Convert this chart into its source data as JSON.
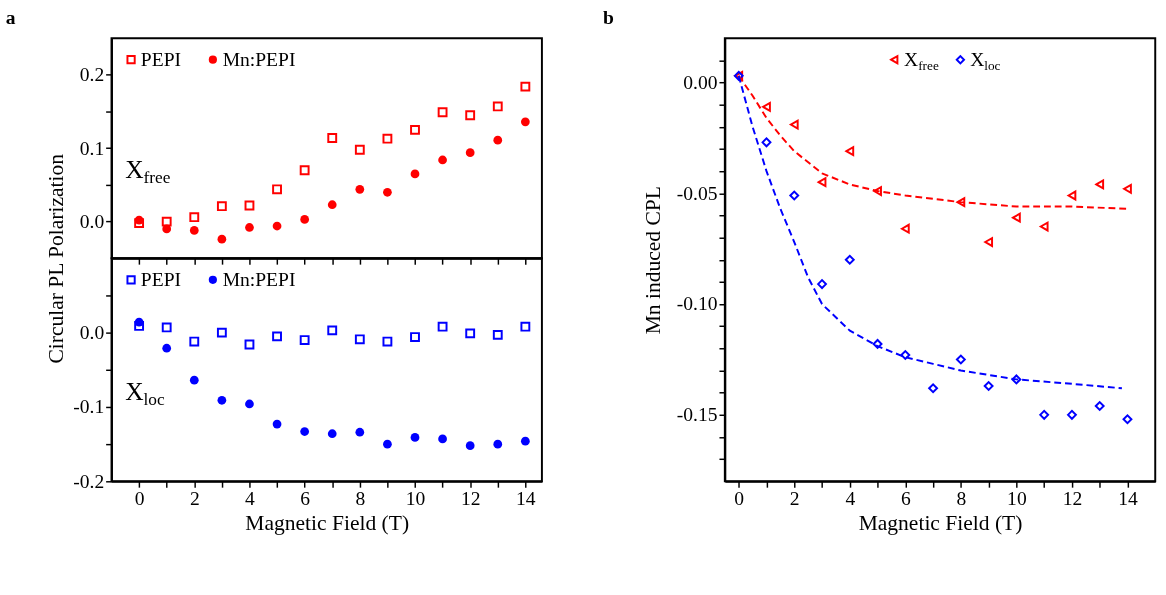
{
  "chart_data": [
    {
      "type": "scatter",
      "title": "a",
      "ylabel": "Circular PL Polarization",
      "xlim": [
        -1,
        14.6
      ],
      "xticks": [
        0,
        {
          "value": 1,
          "label": null
        },
        2,
        {
          "value": 3,
          "label": null
        },
        4,
        {
          "value": 5,
          "label": null
        },
        6,
        {
          "value": 7,
          "label": null
        },
        8,
        {
          "value": 9,
          "label": null
        },
        10,
        {
          "value": 11,
          "label": null
        },
        12,
        {
          "value": 13,
          "label": null
        },
        14
      ],
      "ylim": [
        -0.05,
        0.25
      ],
      "yticks": [
        {
          "value": 0,
          "label": "0.0"
        },
        {
          "value": 0.05,
          "label": null
        },
        0.1,
        {
          "value": 0.15,
          "label": null
        },
        0.2
      ],
      "tick_labels": "y",
      "legend": "top left",
      "annotations": [
        "X$_{free}$"
      ],
      "x": [
        0,
        1,
        2,
        3,
        4,
        5,
        6,
        7,
        8,
        9,
        10,
        11,
        12,
        13,
        14
      ],
      "series": [
        {
          "name": "PEPI",
          "color": "#ff0000",
          "marker": "square",
          "values": [
            -0.002,
            0.0,
            0.006,
            0.021,
            0.022,
            0.044,
            0.07,
            0.114,
            0.098,
            0.113,
            0.125,
            0.149,
            0.145,
            0.157,
            0.184
          ]
        },
        {
          "name": "Mn:PEPI",
          "color": "#ff0000",
          "marker": "circle",
          "values": [
            0.002,
            -0.01,
            -0.012,
            -0.024,
            -0.008,
            -0.006,
            0.003,
            0.023,
            0.044,
            0.04,
            0.065,
            0.084,
            0.094,
            0.111,
            0.136
          ]
        }
      ]
    },
    {
      "type": "scatter",
      "xlabel": "Magnetic Field (T)",
      "xlim": [
        -1,
        14.6
      ],
      "xticks": [
        0,
        {
          "value": 1,
          "label": null
        },
        2,
        {
          "value": 3,
          "label": null
        },
        4,
        {
          "value": 5,
          "label": null
        },
        6,
        {
          "value": 7,
          "label": null
        },
        8,
        {
          "value": 9,
          "label": null
        },
        10,
        {
          "value": 11,
          "label": null
        },
        12,
        {
          "value": 13,
          "label": null
        },
        14
      ],
      "ylim": [
        -0.2,
        0.1
      ],
      "yticks": [
        -0.2,
        {
          "value": -0.15,
          "label": null
        },
        -0.1,
        {
          "value": -0.05,
          "label": null
        },
        {
          "value": 0,
          "label": "0.0"
        },
        {
          "value": 0.05,
          "label": null
        }
      ],
      "legend": "top left",
      "annotations": [
        "X$_{loc}$"
      ],
      "x": [
        0,
        1,
        2,
        3,
        4,
        5,
        6,
        7,
        8,
        9,
        10,
        11,
        12,
        13,
        14
      ],
      "series": [
        {
          "name": "PEPI",
          "color": "#0000ff",
          "marker": "square",
          "values": [
            0.009,
            0.007,
            -0.012,
            0.0,
            -0.016,
            -0.005,
            -0.01,
            0.003,
            -0.009,
            -0.012,
            -0.006,
            0.008,
            -0.001,
            -0.003,
            0.008
          ]
        },
        {
          "name": "Mn:PEPI",
          "color": "#0000ff",
          "marker": "circle",
          "values": [
            0.014,
            -0.021,
            -0.064,
            -0.091,
            -0.096,
            -0.123,
            -0.133,
            -0.136,
            -0.134,
            -0.15,
            -0.141,
            -0.143,
            -0.152,
            -0.15,
            -0.146
          ]
        }
      ]
    },
    {
      "type": "scatter",
      "title": "b",
      "xlabel": "Magnetic Field (T)",
      "ylabel": "Mn induced CPL",
      "xlim": [
        -0.5,
        15
      ],
      "xticks": [
        0,
        {
          "value": 1,
          "label": null
        },
        2,
        {
          "value": 3,
          "label": null
        },
        4,
        {
          "value": 5,
          "label": null
        },
        6,
        {
          "value": 7,
          "label": null
        },
        8,
        {
          "value": 9,
          "label": null
        },
        10,
        {
          "value": 11,
          "label": null
        },
        12,
        {
          "value": 13,
          "label": null
        },
        14
      ],
      "ylim": [
        -0.18,
        0.02
      ],
      "yticks": [
        {
          "value": -0.17,
          "label": null
        },
        {
          "value": -0.16,
          "label": null
        },
        -0.15,
        {
          "value": -0.14,
          "label": null
        },
        {
          "value": -0.13,
          "label": null
        },
        {
          "value": -0.12,
          "label": null
        },
        {
          "value": -0.11,
          "label": null
        },
        {
          "value": -0.1,
          "label": "-0.10"
        },
        {
          "value": -0.09,
          "label": null
        },
        {
          "value": -0.08,
          "label": null
        },
        {
          "value": -0.07,
          "label": null
        },
        {
          "value": -0.06,
          "label": null
        },
        -0.05,
        {
          "value": -0.04,
          "label": null
        },
        {
          "value": -0.03,
          "label": null
        },
        {
          "value": -0.02,
          "label": null
        },
        {
          "value": -0.01,
          "label": null
        },
        {
          "value": 0,
          "label": "0.00"
        },
        {
          "value": 0.01,
          "label": null
        }
      ],
      "legend": "top",
      "series": [
        {
          "name": "X$_{free}$",
          "color": "#ff0000",
          "marker": "triangle",
          "x": [
            0,
            1,
            2,
            3,
            4,
            5,
            6,
            8,
            9,
            10,
            11,
            12,
            13,
            14
          ],
          "values": [
            0.003,
            -0.011,
            -0.019,
            -0.045,
            -0.031,
            -0.049,
            -0.066,
            -0.054,
            -0.072,
            -0.061,
            -0.065,
            -0.051,
            -0.046,
            -0.048
          ]
        },
        {
          "name": "X$_{loc}$",
          "color": "#0000ff",
          "marker": "diamond",
          "x": [
            0,
            1,
            2,
            3,
            4,
            5,
            6,
            7,
            8,
            9,
            10,
            11,
            12,
            13,
            14
          ],
          "values": [
            0.003,
            -0.027,
            -0.051,
            -0.091,
            -0.08,
            -0.118,
            -0.123,
            -0.138,
            -0.125,
            -0.137,
            -0.134,
            -0.15,
            -0.15,
            -0.146,
            -0.152
          ]
        },
        {
          "type": "line",
          "color": "#ff0000",
          "marker": "none",
          "line_style": "dashed",
          "x": [
            0,
            0.5,
            1,
            1.5,
            2,
            3,
            4,
            5,
            6,
            8,
            10,
            12,
            14
          ],
          "values": [
            0.003,
            -0.006,
            -0.016,
            -0.024,
            -0.031,
            -0.041,
            -0.046,
            -0.049,
            -0.051,
            -0.054,
            -0.056,
            -0.056,
            -0.057
          ]
        },
        {
          "type": "line",
          "color": "#0000ff",
          "marker": "none",
          "line_style": "dashed",
          "x": [
            0,
            0.5,
            1,
            1.5,
            2,
            2.5,
            3,
            4,
            5,
            6,
            7,
            8,
            9,
            10,
            12,
            13.8
          ],
          "values": [
            0.003,
            -0.02,
            -0.04,
            -0.057,
            -0.072,
            -0.088,
            -0.1,
            -0.112,
            -0.119,
            -0.124,
            -0.127,
            -0.13,
            -0.132,
            -0.134,
            -0.136,
            -0.138
          ]
        }
      ]
    }
  ]
}
